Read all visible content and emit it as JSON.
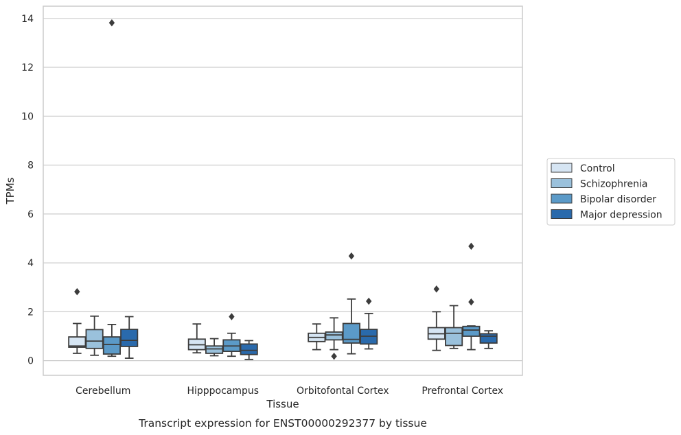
{
  "caption": "Transcript expression for ENST00000292377 by tissue",
  "chart_data": {
    "type": "box",
    "title": "",
    "xlabel": "Tissue",
    "ylabel": "TPMs",
    "ylim": [
      -0.6,
      14.5
    ],
    "yticks": [
      0,
      2,
      4,
      6,
      8,
      10,
      12,
      14
    ],
    "grid": "horizontal",
    "legend_position": "right",
    "categories": [
      "Cerebellum",
      "Hipppocampus",
      "Orbitofontal Cortex",
      "Prefrontal Cortex"
    ],
    "series": [
      {
        "name": "Control",
        "color": "#d6e5f3",
        "boxes": [
          {
            "whislo": 0.3,
            "q1": 0.55,
            "med": 0.6,
            "q3": 0.97,
            "whishi": 1.52,
            "fliers": [
              2.82
            ]
          },
          {
            "whislo": 0.32,
            "q1": 0.45,
            "med": 0.65,
            "q3": 0.88,
            "whishi": 1.5,
            "fliers": []
          },
          {
            "whislo": 0.45,
            "q1": 0.78,
            "med": 0.95,
            "q3": 1.12,
            "whishi": 1.5,
            "fliers": []
          },
          {
            "whislo": 0.42,
            "q1": 0.88,
            "med": 1.1,
            "q3": 1.35,
            "whishi": 2.0,
            "fliers": [
              2.93
            ]
          }
        ]
      },
      {
        "name": "Schizophrenia",
        "color": "#9ac1dc",
        "boxes": [
          {
            "whislo": 0.22,
            "q1": 0.5,
            "med": 0.8,
            "q3": 1.27,
            "whishi": 1.82,
            "fliers": []
          },
          {
            "whislo": 0.2,
            "q1": 0.3,
            "med": 0.48,
            "q3": 0.6,
            "whishi": 0.9,
            "fliers": []
          },
          {
            "whislo": 0.45,
            "q1": 0.85,
            "med": 1.05,
            "q3": 1.17,
            "whishi": 1.75,
            "fliers": [
              0.18
            ]
          },
          {
            "whislo": 0.5,
            "q1": 0.62,
            "med": 1.12,
            "q3": 1.35,
            "whishi": 2.25,
            "fliers": []
          }
        ]
      },
      {
        "name": "Bipolar disorder",
        "color": "#5b9ac8",
        "boxes": [
          {
            "whislo": 0.18,
            "q1": 0.27,
            "med": 0.66,
            "q3": 0.97,
            "whishi": 1.48,
            "fliers": [
              13.82
            ]
          },
          {
            "whislo": 0.18,
            "q1": 0.38,
            "med": 0.6,
            "q3": 0.85,
            "whishi": 1.12,
            "fliers": [
              1.8
            ]
          },
          {
            "whislo": 0.28,
            "q1": 0.72,
            "med": 0.87,
            "q3": 1.52,
            "whishi": 2.52,
            "fliers": [
              4.28
            ]
          },
          {
            "whislo": 0.45,
            "q1": 1.0,
            "med": 1.25,
            "q3": 1.4,
            "whishi": 1.42,
            "fliers": [
              2.4,
              4.68
            ]
          }
        ]
      },
      {
        "name": "Major depression",
        "color": "#2a6aac",
        "boxes": [
          {
            "whislo": 0.1,
            "q1": 0.58,
            "med": 0.83,
            "q3": 1.28,
            "whishi": 1.8,
            "fliers": []
          },
          {
            "whislo": 0.05,
            "q1": 0.25,
            "med": 0.42,
            "q3": 0.68,
            "whishi": 0.82,
            "fliers": []
          },
          {
            "whislo": 0.48,
            "q1": 0.68,
            "med": 1.0,
            "q3": 1.28,
            "whishi": 1.93,
            "fliers": [
              2.43
            ]
          },
          {
            "whislo": 0.5,
            "q1": 0.72,
            "med": 1.0,
            "q3": 1.1,
            "whishi": 1.22,
            "fliers": []
          }
        ]
      }
    ]
  }
}
